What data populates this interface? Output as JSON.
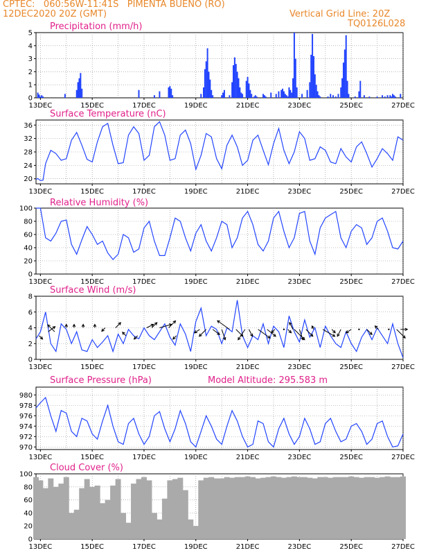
{
  "header": {
    "line1": "CPTEC:   060:56W-11:41S   PIMENTA BUENO (RO)",
    "line2": "12DEC2020 20Z (GMT)",
    "grid_note": "Vertical Grid Line: 20Z",
    "code": "TQ0126L028"
  },
  "colors": {
    "header": "#e8872a",
    "title": "#e0208a",
    "series": "#2244ff",
    "cloud": "#aaaaaa"
  },
  "x_ticks": [
    "13DEC",
    "15DEC",
    "17DEC",
    "19DEC",
    "21DEC",
    "23DEC",
    "25DEC",
    "27DEC"
  ],
  "chart_data": [
    {
      "type": "bar",
      "title": "Precipitation (mm/h)",
      "ylim": [
        0,
        5
      ],
      "yticks": [
        0,
        1,
        2,
        3,
        4,
        5
      ],
      "x_range_days": [
        12.83,
        27
      ],
      "x": [
        12.9,
        12.95,
        13.0,
        13.05,
        13.1,
        13.95,
        14.4,
        14.45,
        14.5,
        14.55,
        14.6,
        16.8,
        17.4,
        17.6,
        17.95,
        18.0,
        18.05,
        18.1,
        19.2,
        19.3,
        19.35,
        19.4,
        19.45,
        19.5,
        19.55,
        19.6,
        19.65,
        20.0,
        20.05,
        20.1,
        20.3,
        20.4,
        20.45,
        20.5,
        20.55,
        20.6,
        20.65,
        20.7,
        20.75,
        20.8,
        20.95,
        21.0,
        21.05,
        21.1,
        21.15,
        21.25,
        21.3,
        21.35,
        21.6,
        21.65,
        21.7,
        21.9,
        22.1,
        22.2,
        22.3,
        22.35,
        22.4,
        22.45,
        22.5,
        22.55,
        22.6,
        22.65,
        22.7,
        22.75,
        22.8,
        22.85,
        22.9,
        23.1,
        23.3,
        23.4,
        23.45,
        23.5,
        23.55,
        23.6,
        23.65,
        23.7,
        23.75,
        23.8,
        24.1,
        24.2,
        24.3,
        24.4,
        24.5,
        24.6,
        24.65,
        24.7,
        24.75,
        24.8,
        24.85,
        24.9,
        25.15,
        25.3,
        25.35,
        25.5,
        25.7,
        26.0,
        26.2,
        26.3,
        26.4,
        26.5,
        26.55,
        26.6,
        26.65,
        26.7,
        26.9
      ],
      "values": [
        0.4,
        0.25,
        0.1,
        0.2,
        0.1,
        0.3,
        0.6,
        1.2,
        1.5,
        1.9,
        0.7,
        0.6,
        0.2,
        0.5,
        0.8,
        0.9,
        0.7,
        0.2,
        0.3,
        0.8,
        2.2,
        2.8,
        3.8,
        2.0,
        1.4,
        0.6,
        0.2,
        0.2,
        0.4,
        0.6,
        0.2,
        1.2,
        2.5,
        3.1,
        2.6,
        2.0,
        1.5,
        0.8,
        0.4,
        0.3,
        1.3,
        1.6,
        1.1,
        0.6,
        0.3,
        0.1,
        0.2,
        0.1,
        0.3,
        0.2,
        0.1,
        0.4,
        0.3,
        0.5,
        0.6,
        0.7,
        0.5,
        0.3,
        0.2,
        0.1,
        0.8,
        0.6,
        0.4,
        1.5,
        5.0,
        3.0,
        0.8,
        0.3,
        0.6,
        1.2,
        3.3,
        4.9,
        3.2,
        1.8,
        1.0,
        0.5,
        0.2,
        0.1,
        0.1,
        0.3,
        0.2,
        0.1,
        0.3,
        0.8,
        1.5,
        2.7,
        3.7,
        4.8,
        1.3,
        0.3,
        0.1,
        0.5,
        1.3,
        0.2,
        0.1,
        0.1,
        0.2,
        0.1,
        0.2,
        0.2,
        0.1,
        0.3,
        0.2,
        0.1,
        0.3
      ]
    },
    {
      "type": "line",
      "title": "Surface Temperature (nC)",
      "ylim": [
        18.5,
        37.5
      ],
      "yticks": [
        20,
        24,
        28,
        32,
        36
      ],
      "x": [
        12.83,
        12.9,
        13.0,
        13.1,
        13.2,
        13.4,
        13.6,
        13.8,
        14.0,
        14.2,
        14.4,
        14.6,
        14.8,
        15.0,
        15.2,
        15.4,
        15.6,
        15.8,
        16.0,
        16.2,
        16.4,
        16.6,
        16.8,
        17.0,
        17.2,
        17.4,
        17.6,
        17.8,
        18.0,
        18.2,
        18.4,
        18.6,
        18.8,
        19.0,
        19.2,
        19.4,
        19.6,
        19.8,
        20.0,
        20.2,
        20.4,
        20.6,
        20.8,
        21.0,
        21.2,
        21.4,
        21.6,
        21.8,
        22.0,
        22.2,
        22.4,
        22.6,
        22.8,
        23.0,
        23.2,
        23.4,
        23.6,
        23.8,
        24.0,
        24.2,
        24.4,
        24.6,
        24.8,
        25.0,
        25.2,
        25.4,
        25.6,
        25.8,
        26.0,
        26.2,
        26.4,
        26.6,
        26.8,
        27.0
      ],
      "values": [
        19.8,
        20.1,
        19.5,
        19.6,
        24.5,
        28.5,
        27.5,
        25.5,
        26.0,
        31.5,
        33.8,
        30.0,
        25.8,
        25.0,
        31.0,
        35.5,
        36.5,
        30.0,
        24.5,
        24.8,
        33.0,
        35.5,
        33.5,
        25.5,
        27.0,
        35.5,
        37.0,
        33.0,
        25.5,
        26.0,
        33.0,
        34.5,
        30.5,
        22.8,
        27.0,
        33.5,
        32.5,
        26.0,
        23.0,
        30.0,
        33.0,
        29.5,
        24.0,
        25.5,
        31.5,
        33.0,
        28.5,
        24.2,
        30.5,
        35.0,
        28.5,
        24.5,
        28.0,
        34.0,
        32.0,
        25.5,
        26.0,
        29.5,
        28.5,
        25.0,
        24.5,
        29.0,
        26.5,
        25.0,
        29.5,
        31.0,
        27.5,
        23.5,
        26.0,
        29.0,
        27.5,
        25.5,
        32.5,
        31.5
      ]
    },
    {
      "type": "line",
      "title": "Relative Humidity (%)",
      "ylim": [
        0,
        100
      ],
      "yticks": [
        0,
        20,
        40,
        60,
        80,
        100
      ],
      "x": [
        12.83,
        13.0,
        13.2,
        13.4,
        13.6,
        13.8,
        14.0,
        14.2,
        14.4,
        14.6,
        14.8,
        15.0,
        15.2,
        15.4,
        15.6,
        15.8,
        16.0,
        16.2,
        16.4,
        16.6,
        16.8,
        17.0,
        17.2,
        17.4,
        17.6,
        17.8,
        18.0,
        18.2,
        18.4,
        18.6,
        18.8,
        19.0,
        19.2,
        19.4,
        19.6,
        19.8,
        20.0,
        20.2,
        20.4,
        20.6,
        20.8,
        21.0,
        21.2,
        21.4,
        21.6,
        21.8,
        22.0,
        22.2,
        22.4,
        22.6,
        22.8,
        23.0,
        23.2,
        23.4,
        23.6,
        23.8,
        24.0,
        24.2,
        24.4,
        24.6,
        24.8,
        25.0,
        25.2,
        25.4,
        25.6,
        25.8,
        26.0,
        26.2,
        26.4,
        26.6,
        26.8,
        27.0
      ],
      "values": [
        100,
        100,
        55,
        50,
        62,
        80,
        82,
        45,
        30,
        52,
        72,
        60,
        45,
        50,
        32,
        22,
        30,
        60,
        55,
        33,
        38,
        70,
        80,
        50,
        28,
        28,
        55,
        85,
        80,
        55,
        35,
        62,
        75,
        50,
        35,
        55,
        80,
        75,
        40,
        55,
        85,
        95,
        75,
        45,
        35,
        50,
        85,
        95,
        65,
        40,
        55,
        92,
        95,
        50,
        30,
        70,
        85,
        90,
        95,
        55,
        40,
        65,
        75,
        70,
        45,
        55,
        80,
        85,
        65,
        40,
        38,
        50
      ]
    },
    {
      "type": "line",
      "title": "Surface Wind (m/s)",
      "ylim": [
        0,
        8
      ],
      "yticks": [
        0,
        2,
        4,
        6,
        8
      ],
      "x": [
        12.83,
        13.0,
        13.2,
        13.4,
        13.6,
        13.8,
        14.0,
        14.2,
        14.4,
        14.6,
        14.8,
        15.0,
        15.2,
        15.4,
        15.6,
        15.8,
        16.0,
        16.2,
        16.4,
        16.6,
        16.8,
        17.0,
        17.2,
        17.4,
        17.6,
        17.8,
        18.0,
        18.2,
        18.4,
        18.6,
        18.8,
        19.0,
        19.2,
        19.4,
        19.6,
        19.8,
        20.0,
        20.2,
        20.4,
        20.6,
        20.8,
        21.0,
        21.2,
        21.4,
        21.6,
        21.8,
        22.0,
        22.2,
        22.4,
        22.6,
        22.8,
        23.0,
        23.2,
        23.4,
        23.6,
        23.8,
        24.0,
        24.2,
        24.4,
        24.6,
        24.8,
        25.0,
        25.2,
        25.4,
        25.6,
        25.8,
        26.0,
        26.2,
        26.4,
        26.6,
        26.8,
        27.0
      ],
      "values": [
        2.6,
        3.5,
        6.0,
        2.0,
        1.0,
        4.5,
        3.8,
        2.0,
        3.5,
        1.2,
        1.0,
        2.5,
        1.5,
        2.2,
        3.0,
        1.0,
        3.2,
        2.0,
        3.8,
        3.0,
        2.6,
        4.0,
        3.0,
        2.5,
        3.5,
        4.5,
        2.8,
        1.8,
        4.5,
        3.2,
        1.0,
        4.8,
        6.5,
        3.0,
        4.2,
        3.8,
        2.0,
        4.0,
        3.5,
        7.5,
        3.0,
        1.5,
        3.0,
        2.5,
        4.5,
        2.0,
        4.2,
        3.5,
        1.5,
        5.5,
        3.5,
        2.2,
        5.0,
        2.8,
        4.0,
        1.5,
        4.2,
        3.0,
        2.0,
        1.5,
        3.5,
        2.0,
        1.0,
        2.8,
        3.8,
        2.5,
        4.0,
        3.0,
        2.0,
        4.5,
        2.0,
        0.2
      ]
    },
    {
      "type": "line",
      "title": "Surface Pressure (hPa)",
      "annotation": "Model Altitude: 295.583 m",
      "ylim": [
        969.5,
        981.5
      ],
      "yticks": [
        970,
        972,
        974,
        976,
        978,
        980
      ],
      "x": [
        12.83,
        13.0,
        13.2,
        13.4,
        13.6,
        13.8,
        14.0,
        14.2,
        14.4,
        14.6,
        14.8,
        15.0,
        15.2,
        15.4,
        15.6,
        15.8,
        16.0,
        16.2,
        16.4,
        16.6,
        16.8,
        17.0,
        17.2,
        17.4,
        17.6,
        17.8,
        18.0,
        18.2,
        18.4,
        18.6,
        18.8,
        19.0,
        19.2,
        19.4,
        19.6,
        19.8,
        20.0,
        20.2,
        20.4,
        20.6,
        20.8,
        21.0,
        21.2,
        21.4,
        21.6,
        21.8,
        22.0,
        22.2,
        22.4,
        22.6,
        22.8,
        23.0,
        23.2,
        23.4,
        23.6,
        23.8,
        24.0,
        24.2,
        24.4,
        24.6,
        24.8,
        25.0,
        25.2,
        25.4,
        25.6,
        25.8,
        26.0,
        26.2,
        26.4,
        26.6,
        26.8,
        27.0
      ],
      "values": [
        977.5,
        978.5,
        979.5,
        976.0,
        973.0,
        977.0,
        976.5,
        973.0,
        972.0,
        975.5,
        975.0,
        972.5,
        971.5,
        975.0,
        978.0,
        974.0,
        971.0,
        970.5,
        974.5,
        975.5,
        972.5,
        970.5,
        972.0,
        976.0,
        976.8,
        973.5,
        971.0,
        973.5,
        977.0,
        974.5,
        971.0,
        970.0,
        973.0,
        976.0,
        974.0,
        971.5,
        970.5,
        974.0,
        977.0,
        975.0,
        972.0,
        970.0,
        970.5,
        975.0,
        974.5,
        971.0,
        970.0,
        973.5,
        975.5,
        972.5,
        970.5,
        972.0,
        975.5,
        973.5,
        970.5,
        971.0,
        974.5,
        975.5,
        973.0,
        971.0,
        971.5,
        974.0,
        974.5,
        973.0,
        970.5,
        971.5,
        974.5,
        975.0,
        972.0,
        970.0,
        970.2,
        972.5
      ]
    },
    {
      "type": "bar",
      "title": "Cloud Cover (%)",
      "ylim": [
        0,
        100
      ],
      "yticks": [
        0,
        20,
        40,
        60,
        80,
        100
      ],
      "x": [
        12.83,
        13.0,
        13.2,
        13.4,
        13.6,
        13.8,
        14.0,
        14.2,
        14.4,
        14.6,
        14.8,
        15.0,
        15.2,
        15.4,
        15.6,
        15.8,
        16.0,
        16.2,
        16.4,
        16.6,
        16.8,
        17.0,
        17.2,
        17.4,
        17.6,
        17.8,
        18.0,
        18.2,
        18.4,
        18.6,
        18.8,
        19.0,
        19.2,
        19.4,
        19.6,
        19.8,
        20.0,
        20.2,
        20.4,
        20.6,
        20.8,
        21.0,
        21.2,
        21.4,
        21.6,
        21.8,
        22.0,
        22.2,
        22.4,
        22.6,
        22.8,
        23.0,
        23.2,
        23.4,
        23.6,
        23.8,
        24.0,
        24.2,
        24.4,
        24.6,
        24.8,
        25.0,
        25.2,
        25.4,
        25.6,
        25.8,
        26.0,
        26.2,
        26.4,
        26.6,
        26.8,
        27.0
      ],
      "values": [
        95,
        90,
        78,
        93,
        80,
        85,
        95,
        40,
        45,
        78,
        92,
        80,
        82,
        55,
        60,
        82,
        92,
        40,
        25,
        85,
        92,
        95,
        90,
        40,
        30,
        62,
        90,
        92,
        94,
        75,
        30,
        20,
        90,
        94,
        95,
        93,
        93,
        95,
        94,
        95,
        95,
        96,
        95,
        93,
        94,
        95,
        96,
        95,
        94,
        95,
        96,
        95,
        95,
        94,
        93,
        95,
        95,
        94,
        95,
        95,
        95,
        96,
        95,
        94,
        95,
        95,
        94,
        95,
        96,
        95,
        95,
        96
      ]
    }
  ],
  "wind_arrows": {
    "x": [
      12.95,
      13.3,
      13.55,
      14.0,
      14.3,
      14.65,
      15.1,
      15.5,
      15.9,
      16.3,
      16.75,
      17.1,
      17.3,
      17.6,
      17.95,
      18.25,
      19.15,
      19.4,
      19.65,
      20.0,
      20.3,
      20.55,
      20.9,
      21.05,
      21.4,
      21.75,
      22.05,
      22.4,
      22.55,
      22.75,
      22.8,
      23.0,
      23.25,
      23.55,
      23.9,
      24.25,
      24.6,
      25.0,
      25.3,
      25.6,
      26.05,
      26.45,
      26.75,
      26.9
    ],
    "level": [
      3.0,
      3.5,
      3.5,
      4.0,
      4.0,
      4.0,
      4.0,
      4.0,
      4.0,
      3.0,
      3.0,
      4.0,
      4.0,
      4.0,
      4.0,
      3.0,
      3.8,
      3.8,
      3.8,
      3.8,
      3.8,
      3.8,
      3.8,
      3.8,
      3.8,
      3.8,
      3.8,
      3.8,
      3.8,
      3.8,
      3.8,
      3.8,
      3.8,
      3.8,
      3.8,
      3.8,
      3.8,
      3.8,
      3.8,
      3.8,
      3.8,
      3.8,
      3.8,
      3.8
    ],
    "u": [
      1.0,
      2.0,
      -2.0,
      0,
      0,
      0,
      0,
      -1.0,
      1.5,
      -1.0,
      -1.0,
      2.0,
      1.5,
      3.5,
      2.0,
      -1.0,
      -1.5,
      -2.0,
      2.0,
      1.0,
      -3.5,
      2.0,
      -2.0,
      1.0,
      3.5,
      2.5,
      -1.0,
      0,
      1.0,
      -1.0,
      3.0,
      1.0,
      2.0,
      -0.5,
      3.5,
      1.0,
      -1.0,
      -1.5,
      0,
      1.5,
      -1.0,
      0,
      2.5,
      2.0
    ],
    "v": [
      -1.0,
      1.5,
      2.0,
      1.0,
      1.0,
      1.0,
      1.0,
      -1.0,
      1.5,
      1.0,
      -1.0,
      1.0,
      1.5,
      1.0,
      2.0,
      -1.0,
      -1.0,
      -2.0,
      -1.5,
      -3.0,
      2.5,
      -2.0,
      -3.0,
      -2.0,
      -2.5,
      -2.0,
      -1.0,
      0,
      -1.0,
      2.0,
      -3.0,
      -3.0,
      -2.0,
      1.0,
      -2.0,
      -1.0,
      -2.0,
      -1.0,
      0,
      -1.5,
      1.0,
      0,
      -2.5,
      0
    ]
  }
}
